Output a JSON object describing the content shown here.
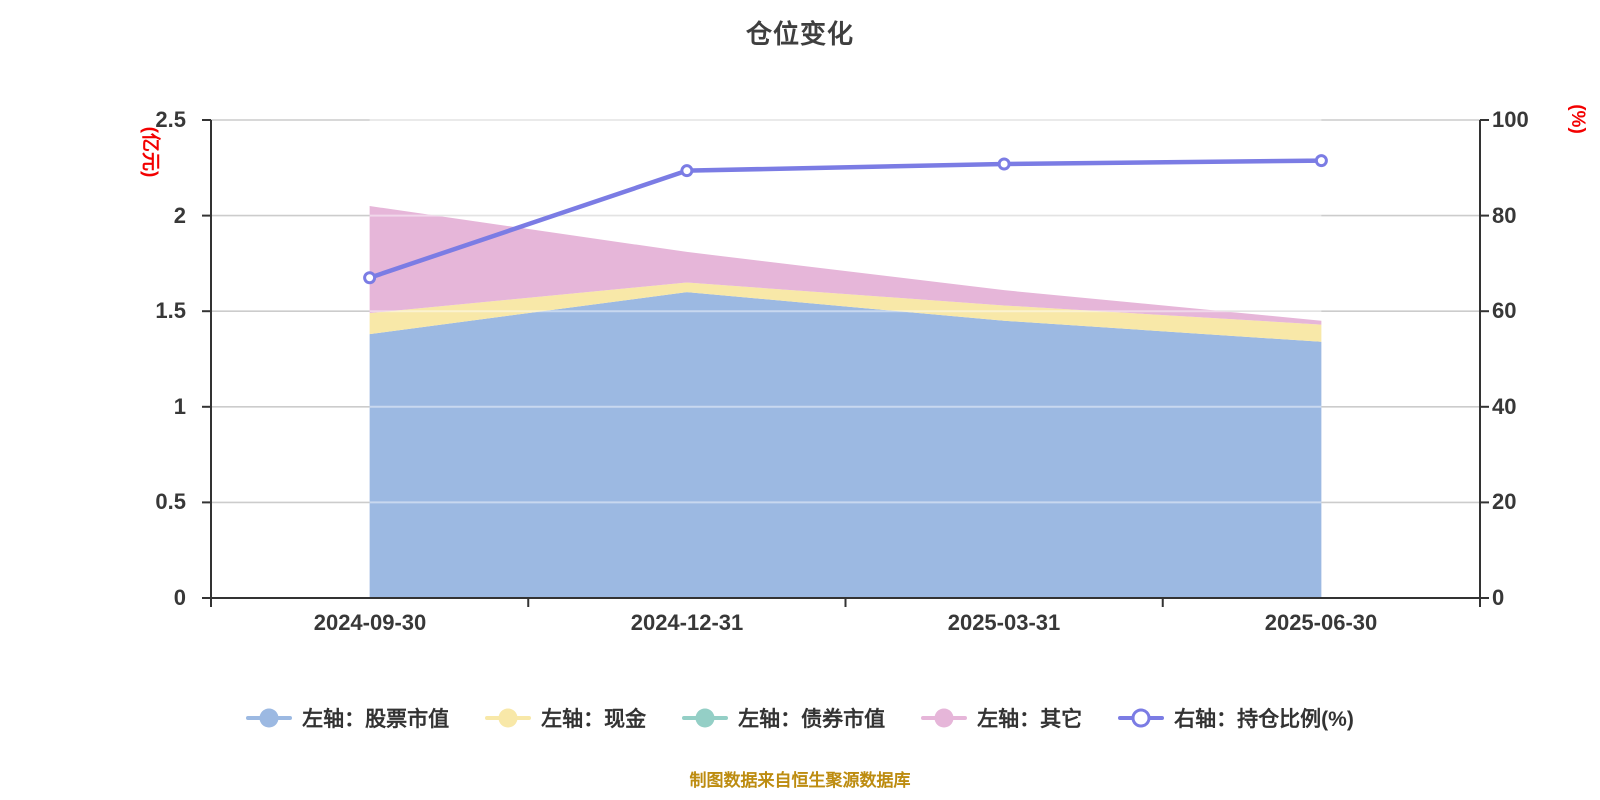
{
  "title": "仓位变化",
  "footer_note": "制图数据来自恒生聚源数据库",
  "chart_data": {
    "type": "area",
    "title": "仓位变化",
    "x": [
      "2024-09-30",
      "2024-12-31",
      "2025-03-31",
      "2025-06-30"
    ],
    "series": [
      {
        "name": "左轴：股票市值",
        "axis": "left",
        "type": "area",
        "stacked": true,
        "color": "#9cb9e2",
        "values": [
          1.38,
          1.6,
          1.45,
          1.34
        ]
      },
      {
        "name": "左轴：现金",
        "axis": "left",
        "type": "area",
        "stacked": true,
        "color": "#f8e8a8",
        "values": [
          0.11,
          0.05,
          0.08,
          0.09
        ]
      },
      {
        "name": "左轴：债券市值",
        "axis": "left",
        "type": "area",
        "stacked": true,
        "color": "#94cfc6",
        "values": [
          0,
          0,
          0,
          0
        ]
      },
      {
        "name": "左轴：其它",
        "axis": "left",
        "type": "area",
        "stacked": true,
        "color": "#e6b6d9",
        "values": [
          0.56,
          0.16,
          0.08,
          0.02
        ]
      },
      {
        "name": "右轴：持仓比例(%)",
        "axis": "right",
        "type": "line",
        "color": "#7b7ce4",
        "values": [
          67,
          89.4,
          90.8,
          91.5
        ]
      }
    ],
    "left_axis": {
      "unit": "(亿元)",
      "min": 0,
      "max": 2.5,
      "ticks": [
        "2.5",
        "2",
        "1.5",
        "1",
        "0.5",
        "0"
      ]
    },
    "right_axis": {
      "unit": "(%)",
      "min": 0,
      "max": 100,
      "ticks": [
        "100",
        "80",
        "60",
        "40",
        "20",
        "0"
      ]
    },
    "legend_position": "bottom",
    "grid": true
  }
}
